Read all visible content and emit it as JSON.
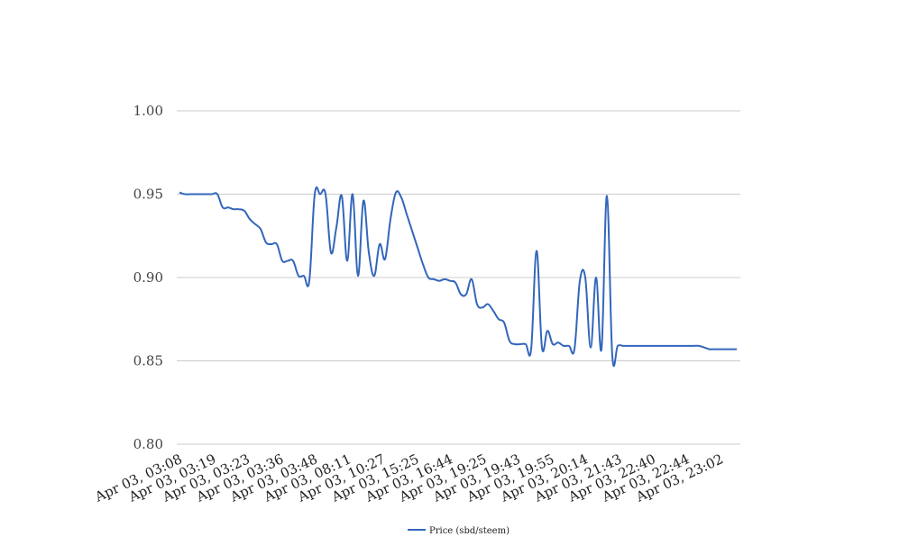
{
  "chart_data": {
    "type": "line",
    "title": "",
    "xlabel": "",
    "ylabel": "",
    "ylim": [
      0.8,
      1.0
    ],
    "yticks": [
      "0.80",
      "0.85",
      "0.90",
      "0.95",
      "1.00"
    ],
    "grid": true,
    "legend_position": "bottom-center",
    "x_tick_labels": [
      "Apr 03, 03:08",
      "Apr 03, 03:19",
      "Apr 03, 03:23",
      "Apr 03, 03:36",
      "Apr 03, 03:48",
      "Apr 03, 08:11",
      "Apr 03, 10:27",
      "Apr 03, 15:25",
      "Apr 03, 16:44",
      "Apr 03, 19:25",
      "Apr 03, 19:43",
      "Apr 03, 19:55",
      "Apr 03, 20:14",
      "Apr 03, 21:43",
      "Apr 03, 22:40",
      "Apr 03, 22:44",
      "Apr 03, 23:02"
    ],
    "series": [
      {
        "name": "Price (sbd/steem)",
        "color": "#3366bb",
        "values": [
          0.951,
          0.95,
          0.95,
          0.95,
          0.95,
          0.95,
          0.95,
          0.95,
          0.942,
          0.942,
          0.941,
          0.941,
          0.94,
          0.935,
          0.932,
          0.929,
          0.921,
          0.92,
          0.92,
          0.91,
          0.91,
          0.91,
          0.901,
          0.901,
          0.898,
          0.95,
          0.95,
          0.95,
          0.915,
          0.93,
          0.949,
          0.91,
          0.95,
          0.901,
          0.946,
          0.915,
          0.901,
          0.92,
          0.911,
          0.935,
          0.951,
          0.948,
          0.938,
          0.928,
          0.918,
          0.908,
          0.9,
          0.899,
          0.898,
          0.899,
          0.898,
          0.897,
          0.89,
          0.89,
          0.899,
          0.884,
          0.882,
          0.884,
          0.88,
          0.875,
          0.873,
          0.862,
          0.86,
          0.86,
          0.86,
          0.857,
          0.916,
          0.858,
          0.868,
          0.86,
          0.861,
          0.859,
          0.859,
          0.857,
          0.898,
          0.9,
          0.858,
          0.9,
          0.857,
          0.949,
          0.853,
          0.859,
          0.859,
          0.859,
          0.859,
          0.859,
          0.859,
          0.859,
          0.859,
          0.859,
          0.859,
          0.859,
          0.859,
          0.859,
          0.859,
          0.859,
          0.859,
          0.858,
          0.857,
          0.857,
          0.857,
          0.857,
          0.857,
          0.857
        ]
      }
    ]
  },
  "legend": {
    "label": "Price (sbd/steem)"
  }
}
